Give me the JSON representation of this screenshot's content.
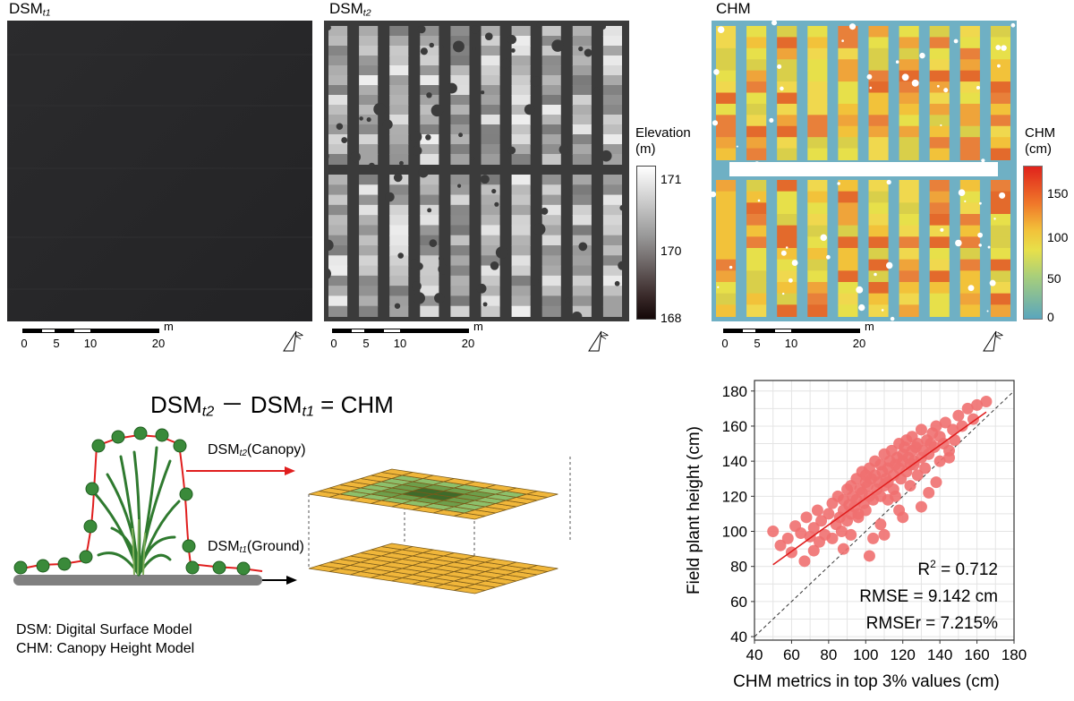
{
  "panels": {
    "dsm_t1": {
      "title_main": "DSM",
      "title_sub": "t1"
    },
    "dsm_t2": {
      "title_main": "DSM",
      "title_sub": "t2"
    },
    "chm": {
      "title": "CHM"
    }
  },
  "scalebar": {
    "unit": "m",
    "ticks": [
      "0",
      "5",
      "10",
      "20"
    ]
  },
  "elevation_colorbar": {
    "label_line1": "Elevation",
    "label_line2": "(m)",
    "ticks": [
      "171",
      "170",
      "168"
    ]
  },
  "chm_colorbar": {
    "label_line1": "CHM",
    "label_line2": "(cm)",
    "ticks": [
      "150",
      "100",
      "50",
      "0"
    ]
  },
  "colors": {
    "chm_low": "#5aa6bd",
    "chm_mid": "#e7e04a",
    "chm_high": "#e0231c",
    "dot_fill": "#3a8a3a",
    "red_line": "#e01e1e",
    "grid_yellow": "#f0b63a",
    "grid_green": "#8dc06b"
  },
  "equation": {
    "a_main": "DSM",
    "a_sub": "t2",
    "minus": "－",
    "b_main": "DSM",
    "b_sub": "t1",
    "rest": "= CHM"
  },
  "diagram": {
    "canopy_main": "DSM",
    "canopy_sub": "t2",
    "canopy_rest": "(Canopy)",
    "ground_main": "DSM",
    "ground_sub": "t1",
    "ground_rest": "(Ground)"
  },
  "legend": {
    "line1": "DSM: Digital Surface Model",
    "line2": "CHM: Canopy Height Model"
  },
  "chart_data": {
    "type": "scatter",
    "xlabel": "CHM metrics in top 3% values (cm)",
    "ylabel": "Field plant height (cm)",
    "xlim": [
      40,
      180
    ],
    "ylim": [
      38,
      186
    ],
    "xticks": [
      40,
      60,
      80,
      100,
      120,
      140,
      160,
      180
    ],
    "yticks": [
      40,
      60,
      80,
      100,
      120,
      140,
      160,
      180
    ],
    "xtick_labels": [
      "40",
      "60",
      "80",
      "100",
      "120",
      "140",
      "160",
      "180"
    ],
    "ytick_labels": [
      "40",
      "60",
      "80",
      "100",
      "120",
      "140",
      "160",
      "180"
    ],
    "grid": true,
    "one_to_one_line": true,
    "fit_line": {
      "x": [
        50,
        165
      ],
      "y": [
        81,
        168
      ]
    },
    "points_x": [
      50,
      54,
      58,
      60,
      62,
      65,
      67,
      68,
      70,
      72,
      72,
      74,
      75,
      76,
      78,
      80,
      82,
      82,
      84,
      85,
      86,
      87,
      88,
      88,
      90,
      90,
      91,
      92,
      92,
      93,
      94,
      95,
      95,
      96,
      97,
      98,
      98,
      99,
      100,
      100,
      101,
      102,
      102,
      103,
      104,
      105,
      105,
      106,
      107,
      108,
      108,
      109,
      110,
      110,
      111,
      112,
      112,
      113,
      114,
      115,
      115,
      116,
      117,
      118,
      118,
      119,
      120,
      120,
      121,
      122,
      122,
      123,
      124,
      125,
      125,
      126,
      127,
      128,
      128,
      130,
      130,
      131,
      132,
      133,
      134,
      135,
      136,
      137,
      138,
      140,
      140,
      142,
      143,
      145,
      147,
      148,
      150,
      152,
      155,
      158,
      160,
      165,
      96,
      104,
      112,
      118,
      124,
      130,
      108,
      100,
      92,
      116,
      126,
      134,
      88,
      120,
      110,
      138,
      145,
      102
    ],
    "points_y": [
      100,
      92,
      96,
      88,
      103,
      99,
      83,
      108,
      97,
      102,
      89,
      112,
      94,
      106,
      98,
      110,
      96,
      116,
      104,
      120,
      108,
      100,
      118,
      112,
      124,
      106,
      115,
      126,
      110,
      120,
      114,
      130,
      118,
      108,
      124,
      122,
      134,
      116,
      128,
      112,
      126,
      136,
      120,
      130,
      118,
      132,
      140,
      124,
      128,
      138,
      120,
      134,
      126,
      144,
      130,
      136,
      128,
      140,
      146,
      132,
      124,
      138,
      142,
      136,
      150,
      130,
      144,
      140,
      148,
      134,
      152,
      142,
      138,
      146,
      154,
      140,
      148,
      132,
      150,
      142,
      158,
      146,
      136,
      152,
      144,
      150,
      156,
      148,
      160,
      140,
      154,
      150,
      162,
      146,
      158,
      152,
      166,
      160,
      170,
      164,
      172,
      174,
      110,
      96,
      118,
      112,
      126,
      114,
      104,
      132,
      98,
      120,
      138,
      122,
      90,
      108,
      98,
      128,
      142,
      86
    ],
    "stats": {
      "r2_main": "R",
      "r2_exp": "2",
      "r2_val": " = 0.712",
      "rmse": "RMSE  = 9.142 cm",
      "rmser": "RMSEr = 7.215%"
    }
  }
}
